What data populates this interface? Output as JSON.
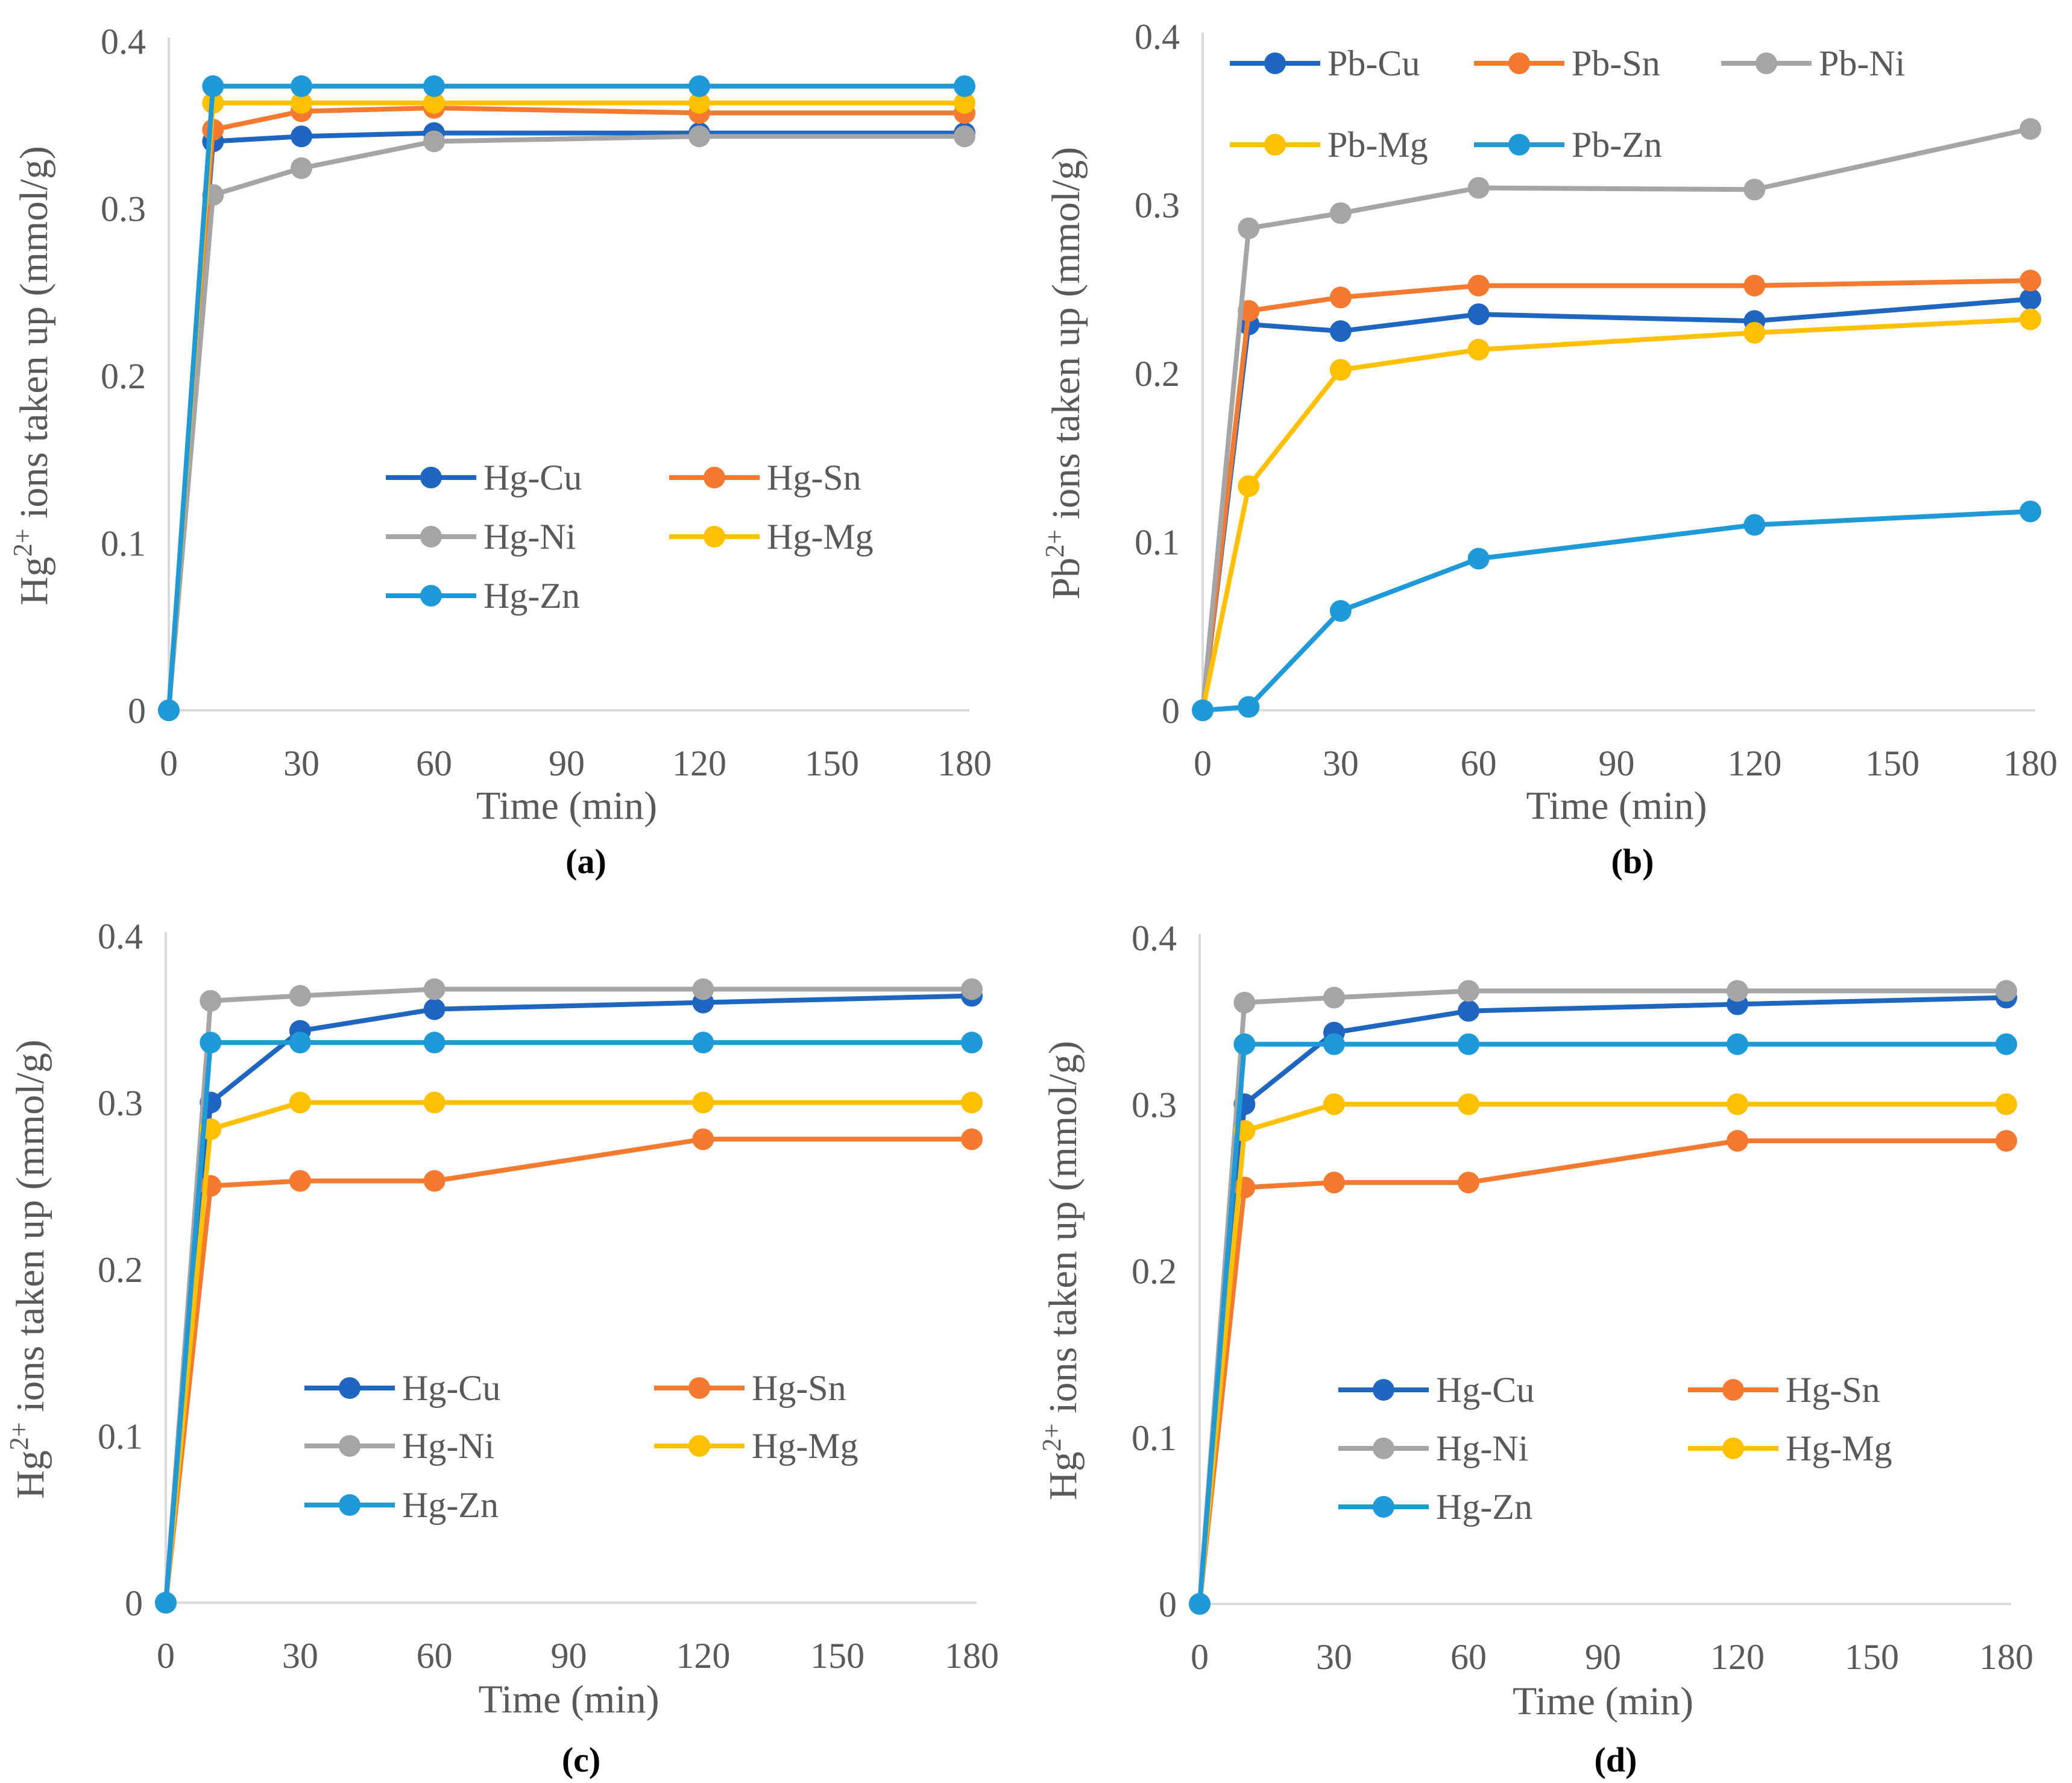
{
  "chart_data": [
    {
      "type": "line",
      "panel_label": "(a)",
      "xlabel": "Time (min)",
      "ylabel_prefix": "Hg",
      "ylabel_sup": "2+",
      "ylabel_suffix": "ions taken up (mmol/g)",
      "xlim": [
        0,
        180
      ],
      "ylim": [
        0,
        0.4
      ],
      "xticks": [
        "0",
        "30",
        "60",
        "90",
        "120",
        "150",
        "180"
      ],
      "yticks": [
        "0",
        "0.1",
        "0.2",
        "0.3",
        "0.4"
      ],
      "grid": false,
      "legend_position": "center-right",
      "x": [
        0,
        10,
        30,
        60,
        120,
        180
      ],
      "series": [
        {
          "name": "Hg-Cu",
          "color": "#1f66c0",
          "values": [
            0,
            0.34,
            0.343,
            0.345,
            0.345,
            0.345
          ]
        },
        {
          "name": "Hg-Sn",
          "color": "#f47a30",
          "values": [
            0,
            0.347,
            0.358,
            0.36,
            0.357,
            0.357
          ]
        },
        {
          "name": "Hg-Ni",
          "color": "#a5a5a5",
          "values": [
            0,
            0.308,
            0.324,
            0.34,
            0.343,
            0.343
          ]
        },
        {
          "name": "Hg-Mg",
          "color": "#ffc000",
          "values": [
            0,
            0.363,
            0.363,
            0.363,
            0.363,
            0.363
          ]
        },
        {
          "name": "Hg-Zn",
          "color": "#1e9ad8",
          "values": [
            0,
            0.373,
            0.373,
            0.373,
            0.373,
            0.373
          ]
        }
      ]
    },
    {
      "type": "line",
      "panel_label": "(b)",
      "xlabel": "Time (min)",
      "ylabel_prefix": "Pb",
      "ylabel_sup": "2+",
      "ylabel_suffix": "ions taken up  (mmol/g)",
      "xlim": [
        0,
        180
      ],
      "ylim": [
        0,
        0.4
      ],
      "xticks": [
        "0",
        "30",
        "60",
        "90",
        "120",
        "150",
        "180"
      ],
      "yticks": [
        "0",
        "0.1",
        "0.2",
        "0.3",
        "0.4"
      ],
      "grid": false,
      "legend_position": "top",
      "x": [
        0,
        10,
        30,
        60,
        120,
        180
      ],
      "series": [
        {
          "name": "Pb-Cu",
          "color": "#1f66c0",
          "values": [
            0,
            0.229,
            0.225,
            0.235,
            0.231,
            0.244
          ]
        },
        {
          "name": "Pb-Sn",
          "color": "#f47a30",
          "values": [
            0,
            0.237,
            0.245,
            0.252,
            0.252,
            0.255
          ]
        },
        {
          "name": "Pb-Ni",
          "color": "#a5a5a5",
          "values": [
            0,
            0.286,
            0.295,
            0.31,
            0.309,
            0.345
          ]
        },
        {
          "name": "Pb-Mg",
          "color": "#ffc000",
          "values": [
            0,
            0.133,
            0.202,
            0.214,
            0.224,
            0.232
          ]
        },
        {
          "name": "Pb-Zn",
          "color": "#1e9ad8",
          "values": [
            0,
            0.002,
            0.059,
            0.09,
            0.11,
            0.118
          ]
        }
      ]
    },
    {
      "type": "line",
      "panel_label": "(c)",
      "xlabel": "Time (min)",
      "ylabel_prefix": "Hg",
      "ylabel_sup": "2+",
      "ylabel_suffix": "ions taken up (mmol/g)",
      "xlim": [
        0,
        180
      ],
      "ylim": [
        0,
        0.4
      ],
      "xticks": [
        "0",
        "30",
        "60",
        "90",
        "120",
        "150",
        "180"
      ],
      "yticks": [
        "0",
        "0.1",
        "0.2",
        "0.3",
        "0.4"
      ],
      "grid": false,
      "legend_position": "bottom-center",
      "x": [
        0,
        10,
        30,
        60,
        120,
        180
      ],
      "series": [
        {
          "name": "Hg-Cu",
          "color": "#1f66c0",
          "values": [
            0,
            0.3,
            0.343,
            0.356,
            0.36,
            0.364
          ]
        },
        {
          "name": "Hg-Sn",
          "color": "#f47a30",
          "values": [
            0,
            0.25,
            0.253,
            0.253,
            0.278,
            0.278
          ]
        },
        {
          "name": "Hg-Ni",
          "color": "#a5a5a5",
          "values": [
            0,
            0.361,
            0.364,
            0.368,
            0.368,
            0.368
          ]
        },
        {
          "name": "Hg-Mg",
          "color": "#ffc000",
          "values": [
            0,
            0.284,
            0.3,
            0.3,
            0.3,
            0.3
          ]
        },
        {
          "name": "Hg-Zn",
          "color": "#1e9ad8",
          "values": [
            0,
            0.336,
            0.336,
            0.336,
            0.336,
            0.336
          ]
        }
      ]
    },
    {
      "type": "line",
      "panel_label": "(d)",
      "xlabel": "Time (min)",
      "ylabel_prefix": "Hg",
      "ylabel_sup": "2+",
      "ylabel_suffix": "ions taken up (mmol/g)",
      "xlim": [
        0,
        180
      ],
      "ylim": [
        0,
        0.4
      ],
      "xticks": [
        "0",
        "30",
        "60",
        "90",
        "120",
        "150",
        "180"
      ],
      "yticks": [
        "0",
        "0.1",
        "0.2",
        "0.3",
        "0.4"
      ],
      "grid": false,
      "legend_position": "bottom-center",
      "x": [
        0,
        10,
        30,
        60,
        120,
        180
      ],
      "series": [
        {
          "name": "Hg-Cu",
          "color": "#1f66c0",
          "values": [
            0,
            0.3,
            0.343,
            0.356,
            0.36,
            0.364
          ]
        },
        {
          "name": "Hg-Sn",
          "color": "#f47a30",
          "values": [
            0,
            0.25,
            0.253,
            0.253,
            0.278,
            0.278
          ]
        },
        {
          "name": "Hg-Ni",
          "color": "#a5a5a5",
          "values": [
            0,
            0.361,
            0.364,
            0.368,
            0.368,
            0.368
          ]
        },
        {
          "name": "Hg-Mg",
          "color": "#ffc000",
          "values": [
            0,
            0.284,
            0.3,
            0.3,
            0.3,
            0.3
          ]
        },
        {
          "name": "Hg-Zn",
          "color": "#1e9ad8",
          "values": [
            0,
            0.336,
            0.336,
            0.336,
            0.336,
            0.336
          ]
        }
      ]
    }
  ]
}
